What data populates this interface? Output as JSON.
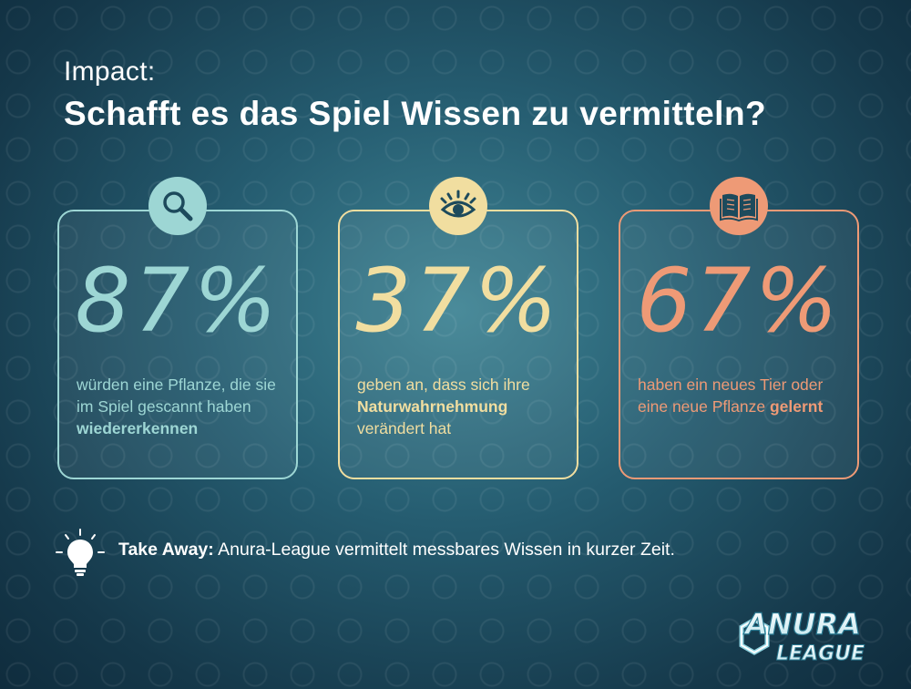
{
  "header": {
    "kicker": "Impact:",
    "title": "Schafft es das Spiel Wissen zu vermitteln?"
  },
  "cards": [
    {
      "icon": "magnifier-icon",
      "percent": "87%",
      "text_before": "würden eine Pflanze, die sie im Spiel gescannt haben ",
      "text_bold": "wiedererkennen",
      "text_after": "",
      "color": "#9dd6d4"
    },
    {
      "icon": "eye-icon",
      "percent": "37%",
      "text_before": "geben an, dass sich ihre ",
      "text_bold": "Naturwahrnehmung",
      "text_after": " verändert hat",
      "color": "#f1dea0"
    },
    {
      "icon": "book-icon",
      "percent": "67%",
      "text_before": "haben ein neues Tier oder eine neue Pflanze ",
      "text_bold": "gelernt",
      "text_after": "",
      "color": "#ee9a76"
    }
  ],
  "takeaway": {
    "label": "Take Away:",
    "text": " Anura-League vermittelt messbares Wissen in kurzer Zeit."
  },
  "logo": {
    "top": "ANURA",
    "bottom": "LEAGUE"
  }
}
